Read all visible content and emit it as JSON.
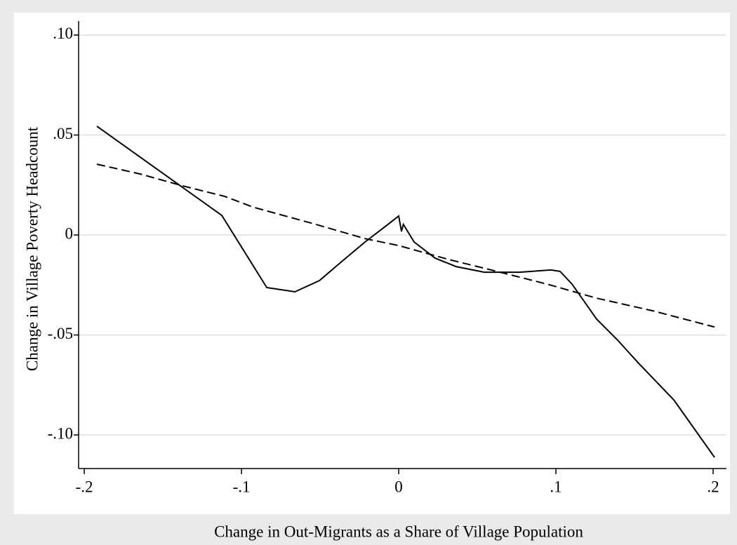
{
  "chart_data": {
    "type": "line",
    "x_label": "Change in Out-Migrants as a Share of Village Population",
    "y_label": "Change in Village Poverty Headcount",
    "xlim": [
      -0.2036,
      0.2085
    ],
    "ylim": [
      -0.1168,
      0.107
    ],
    "xticks": [
      {
        "value": -0.2,
        "label": "-.2"
      },
      {
        "value": -0.1,
        "label": "-.1"
      },
      0,
      {
        "value": 0.1,
        "label": ".1"
      },
      {
        "value": 0.2,
        "label": ".2"
      }
    ],
    "yticks": [
      {
        "value": -0.1,
        "label": "-.10"
      },
      {
        "value": -0.05,
        "label": "-.05"
      },
      0,
      {
        "value": 0.05,
        "label": ".05"
      },
      {
        "value": 0.1,
        "label": ".10"
      }
    ],
    "ygrid": true,
    "series": [
      {
        "color": "#000000",
        "style": "solid",
        "x": [
          -0.192,
          -0.1125,
          -0.0839,
          -0.066,
          -0.0504,
          -0.0348,
          -0.0214,
          -0.008,
          0,
          0.0018,
          0.003,
          0.0098,
          0.0232,
          0.0366,
          0.0545,
          0.0768,
          0.0969,
          0.1027,
          0.1103,
          0.1259,
          0.1393,
          0.1527,
          0.175,
          0.2009
        ],
        "values": [
          0.0544,
          0.0098,
          -0.0263,
          -0.0284,
          -0.0228,
          -0.0123,
          -0.0035,
          0.0046,
          0.0095,
          0.0018,
          0.0053,
          -0.0035,
          -0.0116,
          -0.0158,
          -0.0186,
          -0.0186,
          -0.0175,
          -0.0182,
          -0.0246,
          -0.0421,
          -0.0526,
          -0.0642,
          -0.0825,
          -0.1112
        ]
      },
      {
        "color": "#000000",
        "style": "dashed",
        "x": [
          -0.192,
          -0.1643,
          -0.1375,
          -0.1107,
          -0.0929,
          -0.0527,
          -0.0214,
          0,
          0.0321,
          0.0589,
          0.0946,
          0.1259,
          0.1616,
          0.2009
        ],
        "values": [
          0.0354,
          0.0305,
          0.0246,
          0.0193,
          0.014,
          0.0053,
          -0.0018,
          -0.0053,
          -0.0123,
          -0.0175,
          -0.0246,
          -0.0316,
          -0.0379,
          -0.046
        ]
      }
    ]
  }
}
